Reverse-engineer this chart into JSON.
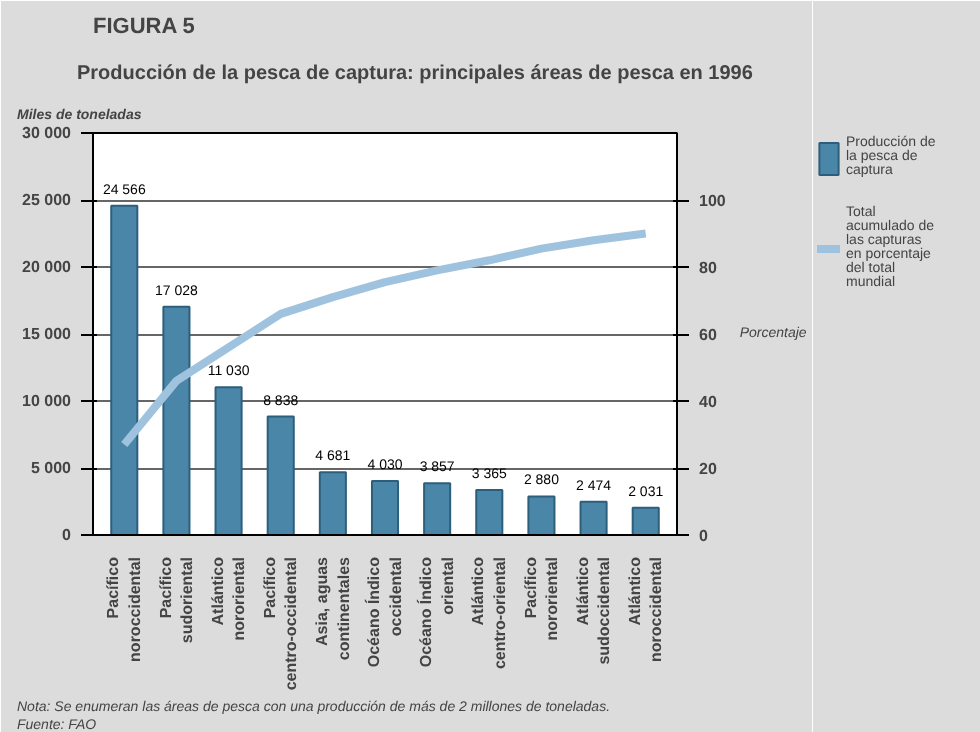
{
  "chart_data": {
    "type": "bar",
    "title": "FIGURA 5",
    "subtitle": "Producción de la pesca de captura: principales áreas de pesca en 1996",
    "ylabel": "Miles de toneladas",
    "y2label": "Porcentaje",
    "categories": [
      "Pacífico\nnoroccidental",
      "Pacífico\nsudoriental",
      "Atlántico\nnororiental",
      "Pacífico\ncentro-occidental",
      "Asia, aguas\ncontinentales",
      "Océano Índico\noccidental",
      "Océano Índico\noriental",
      "Atlántico\ncentro-oriental",
      "Pacífico\nnororiental",
      "Atlántico\nsudoccidental",
      "Atlántico\nnoroccidental"
    ],
    "series": [
      {
        "name": "Producción de la pesca de captura",
        "color": "#4a86a8",
        "values": [
          24566,
          17028,
          11030,
          8838,
          4681,
          4030,
          3857,
          3365,
          2880,
          2474,
          2031
        ],
        "value_labels": [
          "24 566",
          "17 028",
          "11 030",
          "8 838",
          "4 681",
          "4 030",
          "3 857",
          "3 365",
          "2 880",
          "2 474",
          "2 031"
        ]
      },
      {
        "name": "Total acumulado de las capturas en porcentaje del total mundial",
        "type": "line",
        "axis": "y2",
        "color": "#9fc3de",
        "values": [
          27,
          46,
          56,
          66,
          71,
          75.5,
          79,
          82,
          85.5,
          88,
          90
        ]
      }
    ],
    "ylim": [
      0,
      30000
    ],
    "yticks": [
      {
        "value": 0,
        "label": "0"
      },
      {
        "value": 5000,
        "label": "5 000"
      },
      {
        "value": 10000,
        "label": "10 000"
      },
      {
        "value": 15000,
        "label": "15 000"
      },
      {
        "value": 20000,
        "label": "20 000"
      },
      {
        "value": 25000,
        "label": "25 000"
      },
      {
        "value": 30000,
        "label": "30 000"
      }
    ],
    "y2lim": [
      0,
      120
    ],
    "y2ticks": [
      0,
      20,
      40,
      60,
      80,
      100
    ],
    "grid": "y",
    "legend": "right",
    "annotations": [
      "Nota: Se enumeran las áreas de pesca con una producción de más de 2 millones de toneladas.",
      "Fuente: FAO"
    ]
  }
}
